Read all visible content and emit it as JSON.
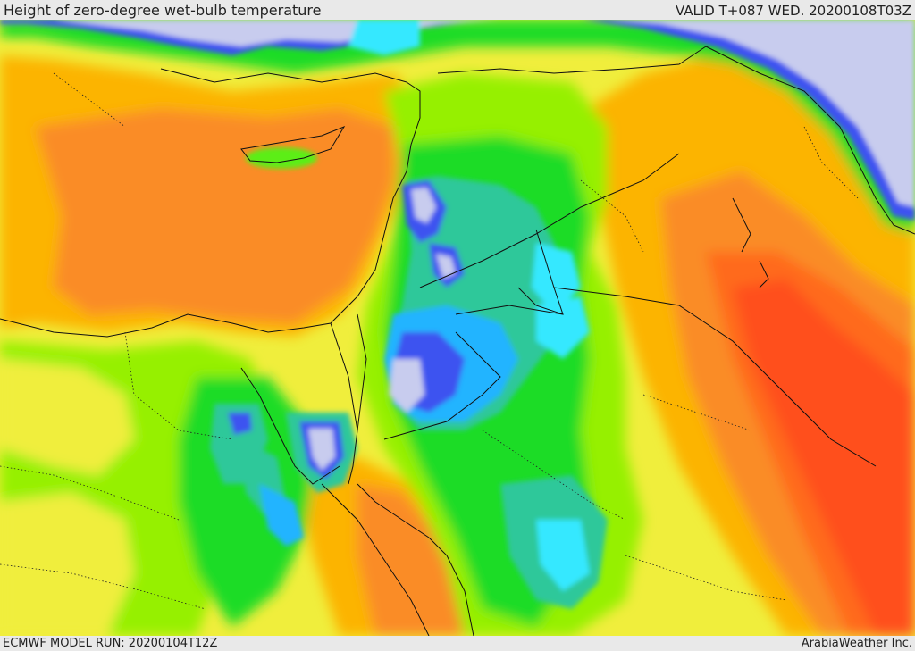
{
  "header": {
    "title": "Height of zero-degree wet-bulb temperature",
    "valid": "VALID T+087 WED. 20200108T03Z"
  },
  "footer": {
    "model_run": "ECMWF MODEL RUN: 20200104T12Z",
    "credit": "ArabiaWeather Inc."
  },
  "map": {
    "field": "zero-degree wet-bulb height",
    "color_scale": [
      "#c8ccee",
      "#7f84e8",
      "#3c52f0",
      "#23b4ff",
      "#36e8ff",
      "#2ec89a",
      "#1ee01e",
      "#5cee14",
      "#9cf000",
      "#e4f23a",
      "#ffd200",
      "#ffb000",
      "#ff8c28",
      "#ff6a1e",
      "#ff4e1c"
    ],
    "colors": {
      "sea_orange": "#fa8c28",
      "land_yellow": "#f0ee3c",
      "land_green": "#96f000",
      "deep_green": "#1edc28",
      "teal": "#2dc89b",
      "cyan": "#32e6ff",
      "blue": "#3c5af0",
      "lavender": "#c8c8ee",
      "amber": "#fcb400",
      "red_orange": "#ff501e"
    }
  }
}
